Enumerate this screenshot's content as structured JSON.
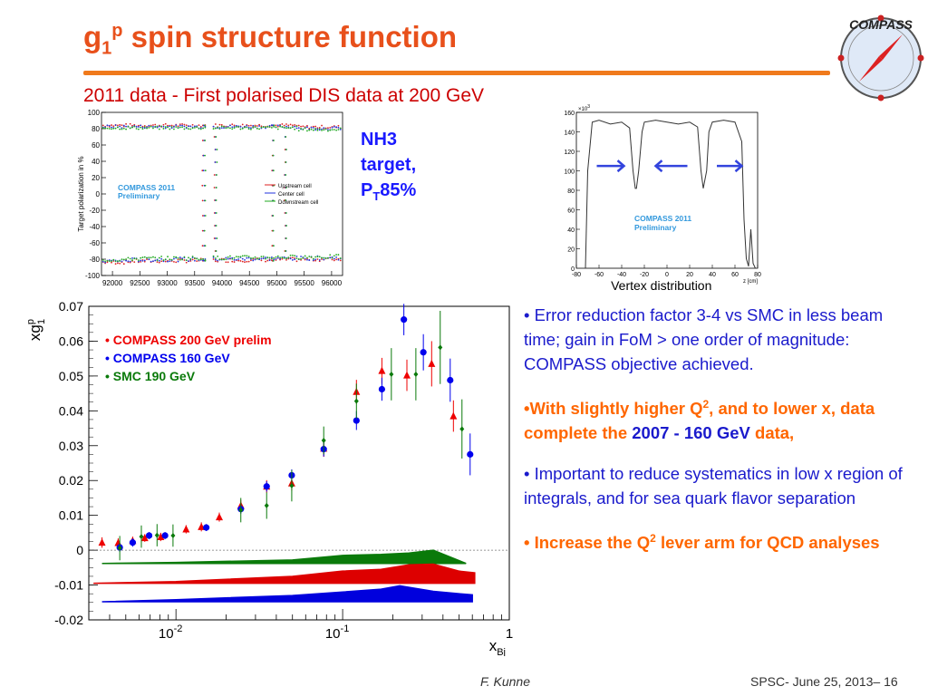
{
  "slide": {
    "title_main": "g",
    "title_sub": "1",
    "title_sup": "p",
    "title_rest": " spin structure function",
    "subtitle": "2011 data - First polarised DIS data at 200 GeV",
    "target_label_line1": "NH3",
    "target_label_line2": "target,",
    "target_label_p": "P",
    "target_label_t": "T",
    "target_label_val": "85%",
    "logo_text": "COMPASS",
    "vertex_caption": "Vertex distribution"
  },
  "bullets": {
    "b1": "• Error reduction factor 3-4 vs SMC in less beam time; gain in FoM > one order of magnitude: COMPASS objective achieved.",
    "b2_prefix": "•With slightly higher Q",
    "b2_sup": "2",
    "b2_mid": ", and to lower x, data complete the ",
    "b2_blue": "2007 - 160 GeV",
    "b2_end": " data,",
    "b3": "• Important to reduce systematics in low x region of integrals, and for sea quark flavor separation",
    "b4_prefix": "• Increase the Q",
    "b4_sup": "2",
    "b4_end": " lever arm for QCD analyses"
  },
  "footer": {
    "author": "F. Kunne",
    "event": "SPSC- June 25, 2013– 16"
  },
  "colors": {
    "title": "#e8501b",
    "rule": "#f07a1c",
    "red": "#ee0000",
    "blue": "#0000ee",
    "green": "#0a7a0a",
    "highlight": "#ff6600"
  },
  "chart_data": [
    {
      "id": "polarization",
      "type": "scatter",
      "ylabel": "Target polarization in %",
      "xlim": [
        91800,
        96200
      ],
      "ylim": [
        -100,
        100
      ],
      "xticks": [
        92000,
        92500,
        93000,
        93500,
        94000,
        94500,
        95000,
        95500,
        96000
      ],
      "yticks": [
        -100,
        -80,
        -60,
        -40,
        -20,
        0,
        20,
        40,
        60,
        80,
        100
      ],
      "annotation": "COMPASS 2011\nPreliminary",
      "legend": [
        "Upstream cell",
        "Center cell",
        "Downstream cell"
      ],
      "legend_placement": "center-right",
      "series_colors": [
        "#dd2222",
        "#2233dd",
        "#22aa22"
      ],
      "upper_level": 84,
      "lower_level": -82,
      "gap_range": [
        93720,
        93830
      ]
    },
    {
      "id": "vertex",
      "type": "line",
      "xlabel": "z [cm]",
      "xlim": [
        -80,
        80
      ],
      "ylim": [
        0,
        160
      ],
      "xticks": [
        -80,
        -60,
        -40,
        -20,
        0,
        20,
        40,
        60,
        80
      ],
      "yticks": [
        0,
        20,
        40,
        60,
        80,
        100,
        120,
        140,
        160
      ],
      "y_exponent": "×10",
      "y_exponent_sup": "3",
      "annotation": "COMPASS 2011\nPreliminary",
      "x": [
        -80,
        -72,
        -70,
        -66,
        -60,
        -50,
        -40,
        -33,
        -30,
        -28,
        -27,
        -25,
        -22,
        -20,
        -10,
        0,
        10,
        20,
        27,
        30,
        32,
        35,
        37,
        40,
        50,
        60,
        66,
        68,
        70,
        72,
        74,
        76,
        78,
        80
      ],
      "y": [
        0,
        0,
        100,
        150,
        152,
        148,
        150,
        144,
        100,
        82,
        82,
        100,
        140,
        150,
        152,
        150,
        148,
        150,
        145,
        100,
        82,
        100,
        140,
        150,
        152,
        150,
        130,
        50,
        10,
        2,
        40,
        5,
        0,
        0
      ]
    },
    {
      "id": "g1p",
      "type": "scatter",
      "ylabel": "xg",
      "ylabel_sup": "p",
      "ylabel_sub": "1",
      "xlabel": "x",
      "xlabel_sub": "Bj",
      "xscale": "log",
      "xlim": [
        0.003,
        1
      ],
      "ylim": [
        -0.02,
        0.07
      ],
      "yticks": [
        -0.02,
        -0.01,
        0,
        0.01,
        0.02,
        0.03,
        0.04,
        0.05,
        0.06,
        0.07
      ],
      "yticklabels": [
        "-0.02",
        "-0.01",
        "0",
        "0.01",
        "0.02",
        "0.03",
        "0.04",
        "0.05",
        "0.06",
        "0.07"
      ],
      "xticks": [
        0.01,
        0.1,
        1
      ],
      "xtick_base": [
        "10",
        "10",
        "1"
      ],
      "xtick_exp": [
        "-2",
        "-1",
        ""
      ],
      "legend_placement": "top-left",
      "series": [
        {
          "name": "COMPASS 200 GeV prelim",
          "legend_prefix": "•  ",
          "marker": "triangle",
          "color": "#ee0000",
          "x": [
            0.0036,
            0.0045,
            0.0055,
            0.0065,
            0.0081,
            0.0115,
            0.0142,
            0.0182,
            0.0245,
            0.035,
            0.0495,
            0.077,
            0.121,
            0.172,
            0.243,
            0.342,
            0.462
          ],
          "y": [
            0.0022,
            0.0021,
            0.0027,
            0.0035,
            0.0038,
            0.006,
            0.0067,
            0.0095,
            0.0128,
            0.0183,
            0.0192,
            0.0292,
            0.0455,
            0.0515,
            0.0502,
            0.0535,
            0.0385
          ],
          "err": [
            0.0015,
            0.0013,
            0.0012,
            0.0011,
            0.0012,
            0.0012,
            0.0013,
            0.0013,
            0.0016,
            0.0018,
            0.0021,
            0.0024,
            0.0034,
            0.0037,
            0.0045,
            0.0065,
            0.0045
          ]
        },
        {
          "name": "COMPASS 160 GeV",
          "legend_prefix": "• ",
          "marker": "circle",
          "color": "#0000ee",
          "x": [
            0.0046,
            0.0055,
            0.0069,
            0.0086,
            0.0152,
            0.0245,
            0.035,
            0.0495,
            0.077,
            0.121,
            0.172,
            0.233,
            0.305,
            0.442,
            0.582
          ],
          "y": [
            0.0008,
            0.0022,
            0.0042,
            0.0042,
            0.0065,
            0.0118,
            0.0183,
            0.0215,
            0.029,
            0.0372,
            0.0462,
            0.0662,
            0.0568,
            0.0488,
            0.0275
          ],
          "err": [
            0.0013,
            0.0012,
            0.001,
            0.001,
            0.001,
            0.0013,
            0.0015,
            0.0017,
            0.0021,
            0.0027,
            0.0033,
            0.0045,
            0.0052,
            0.0062,
            0.006
          ]
        },
        {
          "name": "SMC 190 GeV",
          "legend_prefix": "• ",
          "marker": "diamond",
          "color": "#0a7a0a",
          "x": [
            0.0046,
            0.0062,
            0.0077,
            0.0096,
            0.0245,
            0.035,
            0.0495,
            0.077,
            0.121,
            0.196,
            0.275,
            0.385,
            0.52
          ],
          "y": [
            0.0006,
            0.0039,
            0.0043,
            0.0042,
            0.0115,
            0.0128,
            0.0185,
            0.0315,
            0.0428,
            0.0505,
            0.0505,
            0.0582,
            0.0348
          ],
          "err": [
            0.0035,
            0.0032,
            0.0032,
            0.0032,
            0.0035,
            0.0038,
            0.0045,
            0.004,
            0.005,
            0.0075,
            0.0075,
            0.0105,
            0.0085
          ]
        }
      ],
      "systematic_bands": [
        {
          "color": "#0a7a0a",
          "x": [
            0.0036,
            0.01,
            0.05,
            0.1,
            0.17,
            0.25,
            0.35,
            0.55
          ],
          "low": [
            -0.0038,
            -0.0038,
            -0.0038,
            -0.0038,
            -0.0038,
            -0.0038,
            -0.0038,
            -0.0038
          ],
          "high": [
            -0.0038,
            -0.0035,
            -0.0028,
            -0.0015,
            -0.0012,
            -0.0008,
            0.0,
            -0.0038
          ]
        },
        {
          "color": "#dd0000",
          "x": [
            0.0032,
            0.01,
            0.05,
            0.1,
            0.17,
            0.25,
            0.35,
            0.5,
            0.62
          ],
          "low": [
            -0.0095,
            -0.0095,
            -0.0095,
            -0.0095,
            -0.0095,
            -0.0095,
            -0.0095,
            -0.0095,
            -0.0095
          ],
          "high": [
            -0.0095,
            -0.009,
            -0.0075,
            -0.006,
            -0.0055,
            -0.0042,
            -0.004,
            -0.006,
            -0.0065
          ]
        },
        {
          "color": "#0000dd",
          "x": [
            0.0036,
            0.01,
            0.05,
            0.1,
            0.17,
            0.22,
            0.35,
            0.5,
            0.6
          ],
          "low": [
            -0.0148,
            -0.0148,
            -0.0148,
            -0.0148,
            -0.0148,
            -0.0148,
            -0.0148,
            -0.0148,
            -0.0148
          ],
          "high": [
            -0.0148,
            -0.0142,
            -0.013,
            -0.012,
            -0.0112,
            -0.0102,
            -0.0118,
            -0.0125,
            -0.0128
          ]
        }
      ]
    }
  ]
}
